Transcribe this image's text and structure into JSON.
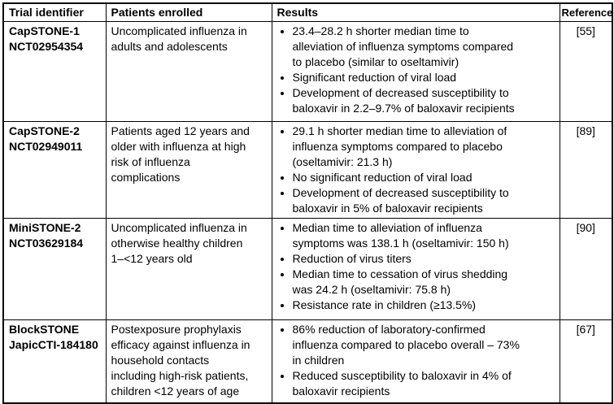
{
  "colors": {
    "border": "#000000",
    "text": "#000000",
    "background": "#ffffff"
  },
  "table": {
    "headers": [
      "Trial identifier",
      "Patients enrolled",
      "Results",
      "Reference"
    ],
    "rows": [
      {
        "trial_name": "CapSTONE-1",
        "trial_id": "NCT02954354",
        "patients": "Uncomplicated influenza in\nadults and adolescents",
        "results": [
          "23.4–28.2 h shorter median time to\nalleviation of influenza symptoms compared\nto placebo (similar to oseltamivir)",
          "Significant reduction of viral load",
          "Development of decreased susceptibility to\nbaloxavir in 2.2–9.7% of baloxavir recipients"
        ],
        "reference": "[55]"
      },
      {
        "trial_name": "CapSTONE-2",
        "trial_id": "NCT02949011",
        "patients": "Patients aged 12 years and\nolder with influenza at high\nrisk of influenza\ncomplications",
        "results": [
          "29.1 h shorter median time to alleviation of\ninfluenza symptoms compared to placebo\n(oseltamivir: 21.3 h)",
          "No significant reduction of viral load",
          "Development of decreased susceptibility to\nbaloxavir in 5% of baloxavir recipients"
        ],
        "reference": "[89]"
      },
      {
        "trial_name": "MiniSTONE-2",
        "trial_id": "NCT03629184",
        "patients": "Uncomplicated influenza in\notherwise healthy children\n1–<12 years old",
        "results": [
          "Median time to alleviation of influenza\nsymptoms was 138.1 h (oseltamivir: 150 h)",
          "Reduction of virus titers",
          "Median time to cessation of virus shedding\nwas 24.2 h (oseltamivir: 75.8 h)",
          "Resistance rate in children (≥13.5%)"
        ],
        "reference": "[90]"
      },
      {
        "trial_name": "BlockSTONE",
        "trial_id": "JapicCTI-184180",
        "patients": "Postexposure prophylaxis\nefficacy against influenza in\nhousehold contacts\nincluding high-risk patients,\nchildren <12 years of age",
        "results": [
          "86% reduction of laboratory-confirmed\ninfluenza compared to placebo overall – 73%\nin children",
          "Reduced susceptibility to baloxavir in 4% of\nbaloxavir recipients"
        ],
        "reference": "[67]"
      }
    ]
  }
}
